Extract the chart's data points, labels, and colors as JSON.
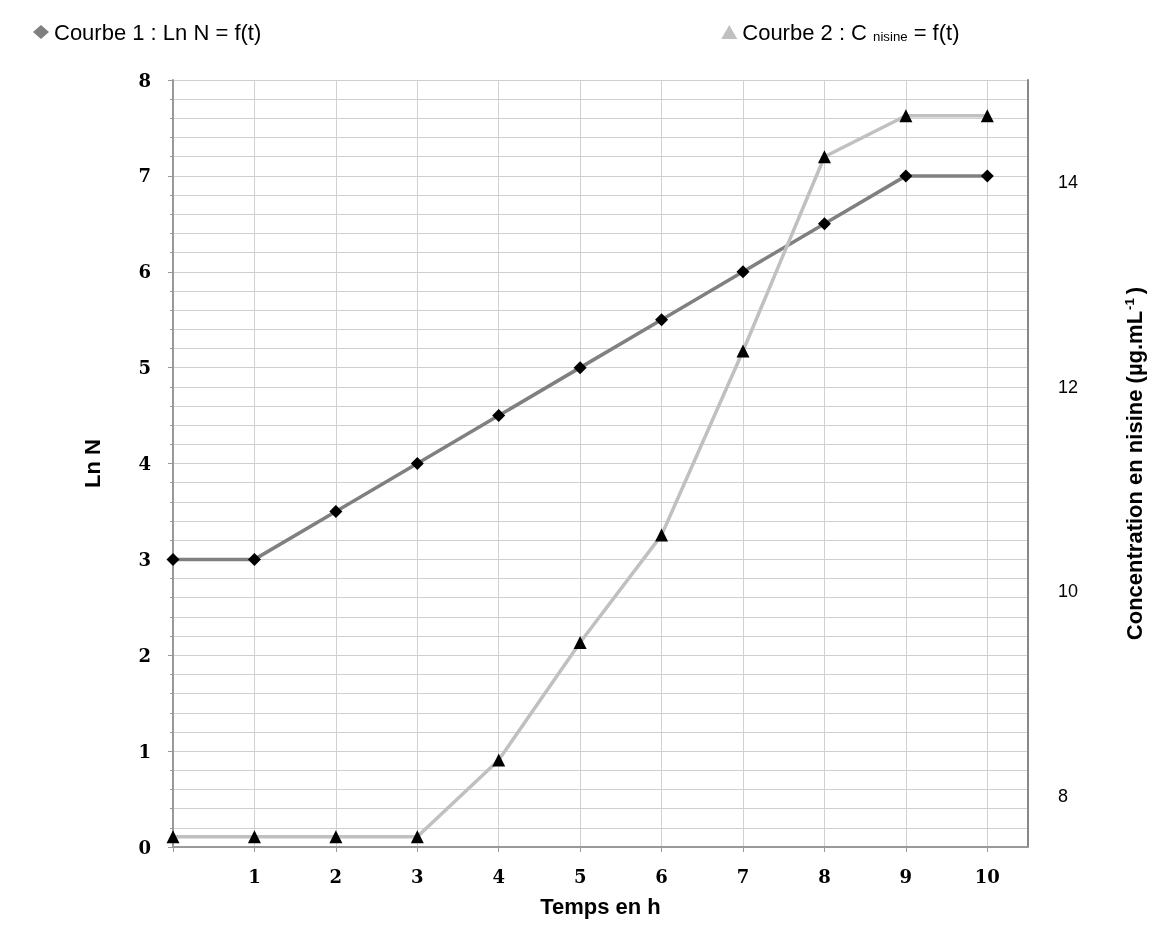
{
  "chart_data": {
    "type": "line",
    "xlabel": "Temps en h",
    "ylabel": "Ln N",
    "y2label": "Concentration en nisine (µg.mL$^{-1}$)",
    "x": [
      0,
      1,
      2,
      3,
      4,
      5,
      6,
      7,
      8,
      9,
      10
    ],
    "xlim": [
      0,
      10.5
    ],
    "xticks": [
      {
        "value": 0,
        "label": null
      },
      1,
      2,
      3,
      4,
      5,
      6,
      7,
      8,
      9,
      10
    ],
    "ylim": [
      0,
      8
    ],
    "yticks": [
      0,
      1,
      2,
      3,
      4,
      5,
      6,
      7,
      8
    ],
    "y2lim": [
      7.5,
      15
    ],
    "y2ticks": [
      8,
      10,
      12,
      14
    ],
    "grid": true,
    "legend": "top",
    "line_style": "solid",
    "series": [
      {
        "name": "Courbe 1 : Ln N = f(t)",
        "color": "#808080",
        "marker": "diamond",
        "values": [
          3,
          3,
          3.5,
          4,
          4.5,
          5,
          5.5,
          6,
          6.5,
          7,
          7
        ]
      },
      {
        "name": "Courbe 2 : C $_{nisine}$ = f(t)",
        "color": "#c0c0c0",
        "marker": "triangle",
        "axis": "y2",
        "values": [
          7.6,
          7.6,
          7.6,
          7.6,
          8.35,
          9.5,
          10.55,
          12.35,
          14.25,
          14.65,
          14.65
        ]
      }
    ]
  }
}
